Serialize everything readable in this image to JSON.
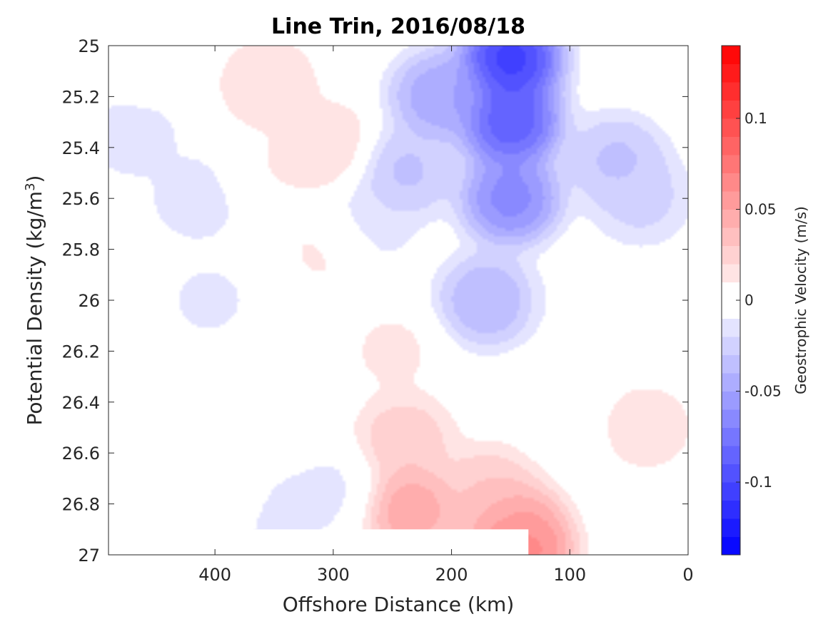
{
  "chart_data": {
    "type": "contour",
    "title": "Line Trin, 2016/08/18",
    "xlabel": "Offshore Distance (km)",
    "ylabel": "Potential Density (kg/m",
    "ylabel_sup": "3",
    "ylabel_close": ")",
    "xlim": [
      490,
      0
    ],
    "xdir": "reverse",
    "ylim": [
      25,
      27
    ],
    "ydir": "reverse",
    "xticks": [
      400,
      300,
      200,
      100,
      0
    ],
    "yticks": [
      25,
      25.2,
      25.4,
      25.6,
      25.8,
      26,
      26.2,
      26.4,
      26.6,
      26.8,
      27
    ],
    "colorbar": {
      "label": "Geostrophic Velocity (m/s)",
      "range": [
        -0.14,
        0.14
      ],
      "levels": 28,
      "ticks": [
        0.1,
        0.05,
        0,
        -0.05,
        -0.1
      ],
      "colormap": "blue-white-red"
    },
    "features": [
      {
        "x": 150,
        "y": 25.05,
        "value": -0.13
      },
      {
        "x": 150,
        "y": 25.3,
        "value": -0.11
      },
      {
        "x": 150,
        "y": 25.6,
        "value": -0.08
      },
      {
        "x": 170,
        "y": 26.0,
        "value": -0.05
      },
      {
        "x": 210,
        "y": 25.2,
        "value": -0.06
      },
      {
        "x": 240,
        "y": 25.5,
        "value": -0.04
      },
      {
        "x": 270,
        "y": 25.7,
        "value": -0.02
      },
      {
        "x": 60,
        "y": 25.45,
        "value": -0.04
      },
      {
        "x": 40,
        "y": 25.6,
        "value": -0.03
      },
      {
        "x": 90,
        "y": 26.0,
        "value": -0.01
      },
      {
        "x": 415,
        "y": 25.6,
        "value": -0.02
      },
      {
        "x": 405,
        "y": 26.0,
        "value": -0.015
      },
      {
        "x": 470,
        "y": 25.35,
        "value": -0.02
      },
      {
        "x": 330,
        "y": 26.7,
        "value": -0.01
      },
      {
        "x": 350,
        "y": 26.85,
        "value": -0.02
      },
      {
        "x": 300,
        "y": 26.75,
        "value": -0.015
      },
      {
        "x": 305,
        "y": 25.4,
        "value": 0.025
      },
      {
        "x": 305,
        "y": 25.8,
        "value": 0.015
      },
      {
        "x": 355,
        "y": 25.15,
        "value": 0.025
      },
      {
        "x": 355,
        "y": 25.5,
        "value": 0.012
      },
      {
        "x": 460,
        "y": 25.05,
        "value": 0.01
      },
      {
        "x": 235,
        "y": 26.82,
        "value": 0.06
      },
      {
        "x": 240,
        "y": 26.55,
        "value": 0.035
      },
      {
        "x": 250,
        "y": 26.2,
        "value": 0.015
      },
      {
        "x": 150,
        "y": 26.88,
        "value": 0.06
      },
      {
        "x": 170,
        "y": 26.75,
        "value": 0.035
      },
      {
        "x": 140,
        "y": 26.98,
        "value": 0.08
      },
      {
        "x": 100,
        "y": 26.5,
        "value": 0.008
      },
      {
        "x": 35,
        "y": 26.5,
        "value": 0.02
      },
      {
        "x": 390,
        "y": 26.78,
        "value": 0.008
      },
      {
        "x": 485,
        "y": 26.7,
        "value": 0.01
      }
    ]
  }
}
